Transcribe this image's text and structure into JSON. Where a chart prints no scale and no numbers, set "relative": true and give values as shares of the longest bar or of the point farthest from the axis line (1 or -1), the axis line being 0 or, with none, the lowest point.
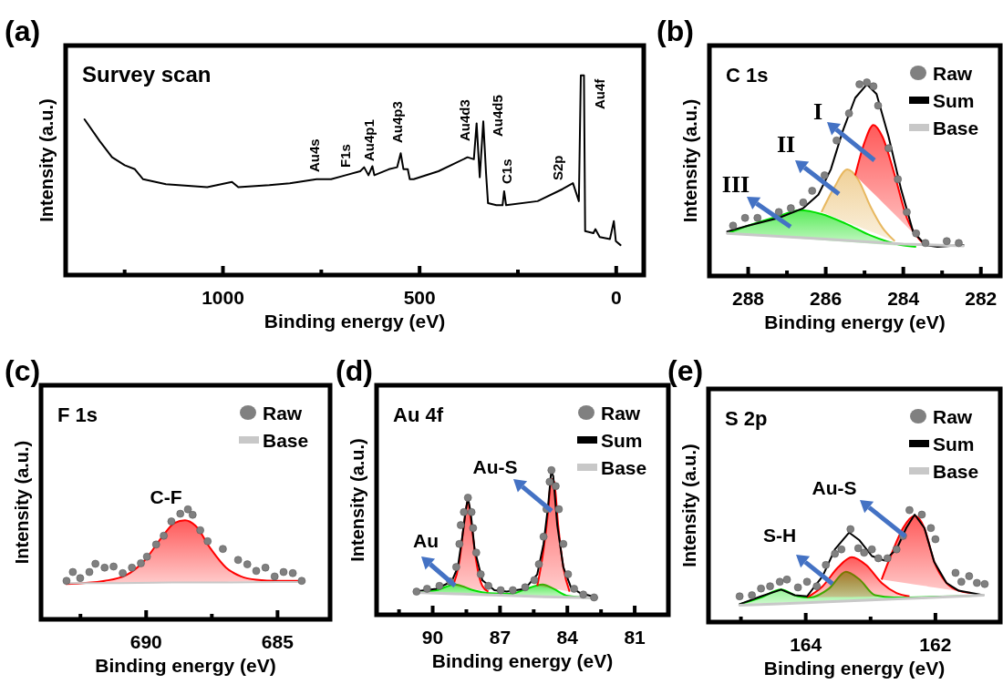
{
  "chart_data": [
    {
      "type": "line",
      "title": "Survey scan",
      "xlabel": "Binding energy (eV)",
      "ylabel": "Intensity (a.u.)",
      "relative": true,
      "xlim": [
        1400,
        -70
      ],
      "xticks": [
        {
          "value": 1250,
          "label": null
        },
        1000,
        {
          "value": 750,
          "label": null
        },
        500,
        {
          "value": 250,
          "label": null
        },
        0
      ],
      "annotations": [
        "(a)",
        "Au4s",
        "F1s",
        "Au4p1",
        "Au4p3",
        "Au4d3",
        "Au4d5",
        "C1s",
        "S2p",
        "Au4f"
      ],
      "series": [
        {
          "color": "#000000",
          "x": [
            1352,
            1313,
            1282,
            1250,
            1224,
            1203,
            1145,
            1040,
            977,
            961,
            882,
            830,
            762,
            725,
            688,
            651,
            641,
            630,
            620,
            615,
            578,
            557,
            548,
            541,
            530,
            525,
            515,
            452,
            378,
            362,
            355,
            347,
            338,
            331,
            326,
            305,
            289,
            285,
            280,
            200,
            137,
            110,
            95,
            90,
            82,
            79,
            58,
            53,
            42,
            16,
            6,
            1,
            -11
          ],
          "values": [
            0.78,
            0.67,
            0.59,
            0.55,
            0.53,
            0.48,
            0.455,
            0.44,
            0.466,
            0.44,
            0.45,
            0.46,
            0.48,
            0.48,
            0.5,
            0.52,
            0.54,
            0.5,
            0.545,
            0.5,
            0.53,
            0.54,
            0.61,
            0.53,
            0.53,
            0.48,
            0.48,
            0.52,
            0.59,
            0.58,
            0.76,
            0.49,
            0.77,
            0.51,
            0.36,
            0.35,
            0.35,
            0.42,
            0.35,
            0.37,
            0.43,
            0.46,
            0.37,
            1.0,
            1.0,
            0.22,
            0.21,
            0.23,
            0.19,
            0.18,
            0.27,
            0.17,
            0.15
          ]
        }
      ]
    },
    {
      "type": "line",
      "title": "C 1s",
      "xlabel": "Binding energy (eV)",
      "ylabel": "Intensity (a.u.)",
      "relative": true,
      "legend": "top right",
      "xlim": [
        289,
        281.5
      ],
      "xticks": [
        288,
        {
          "value": 287,
          "label": null
        },
        286,
        {
          "value": 285,
          "label": null
        },
        284,
        {
          "value": 283,
          "label": null
        },
        282
      ],
      "annotations": [
        "(b)",
        "I",
        "II",
        "III"
      ],
      "series": [
        {
          "name": "Raw",
          "type": "scatter",
          "marker": "circle",
          "color": "#808080",
          "x": [
            288.39,
            288.08,
            287.76,
            287.21,
            286.9,
            286.58,
            286.35,
            286.03,
            285.72,
            285.4,
            285.13,
            284.94,
            284.77,
            284.65,
            284.38,
            284.14,
            283.91,
            283.67,
            283.43,
            282.88,
            282.57
          ],
          "values": [
            0.26,
            0.3,
            0.3,
            0.33,
            0.35,
            0.38,
            0.44,
            0.52,
            0.7,
            0.84,
            0.99,
            1.0,
            0.98,
            0.88,
            0.66,
            0.5,
            0.33,
            0.22,
            0.17,
            0.18,
            0.17
          ]
        },
        {
          "name": "Sum",
          "color": "#000000",
          "x": [
            288.54,
            288,
            287.21,
            286.58,
            286.19,
            285.87,
            285.56,
            285.24,
            284.94,
            284.69,
            284.38,
            284.06,
            283.75,
            283.43,
            283.12,
            282.45
          ],
          "values": [
            0.23,
            0.26,
            0.3,
            0.35,
            0.42,
            0.55,
            0.75,
            0.92,
            0.99,
            0.94,
            0.72,
            0.45,
            0.23,
            0.16,
            0.15,
            0.16
          ]
        },
        {
          "name": "Base",
          "color": "#c8c8c8",
          "x": [
            288.54,
            286,
            284,
            282.45
          ],
          "values": [
            0.22,
            0.19,
            0.165,
            0.155
          ]
        },
        {
          "type": "area",
          "color": "#00e000",
          "x": [
            288.54,
            288,
            287.21,
            286.66,
            286.11,
            285.48,
            284.85,
            284.06,
            283.67
          ],
          "values": [
            0.22,
            0.26,
            0.31,
            0.34,
            0.32,
            0.27,
            0.21,
            0.16,
            0.15
          ]
        },
        {
          "type": "area",
          "color": "#e8b860",
          "x": [
            286.11,
            285.8,
            285.44,
            285.17,
            284.85,
            284.54,
            284.22
          ],
          "values": [
            0.33,
            0.45,
            0.55,
            0.5,
            0.36,
            0.25,
            0.18
          ]
        },
        {
          "type": "area",
          "color": "#ff0000",
          "x": [
            285.24,
            285.0,
            284.77,
            284.54,
            284.22,
            283.91,
            283.59,
            283.43
          ],
          "values": [
            0.52,
            0.69,
            0.78,
            0.72,
            0.52,
            0.3,
            0.19,
            0.16
          ]
        }
      ]
    },
    {
      "type": "line",
      "title": "F 1s",
      "xlabel": "Binding energy (eV)",
      "ylabel": "Intensity (a.u.)",
      "relative": true,
      "legend": "top right",
      "xlim": [
        694,
        683
      ],
      "xticks": [
        {
          "value": 692.5,
          "label": null
        },
        690,
        {
          "value": 687.5,
          "label": null
        },
        685
      ],
      "annotations": [
        "(c)",
        "C-F"
      ],
      "series": [
        {
          "name": "Raw",
          "type": "scatter",
          "marker": "circle",
          "color": "#808080",
          "x": [
            693.03,
            692.79,
            692.51,
            692.16,
            691.93,
            691.58,
            691.24,
            690.89,
            690.54,
            690.2,
            689.97,
            689.62,
            689.33,
            689.04,
            688.7,
            688.41,
            688.23,
            687.94,
            687.66,
            687.08,
            686.5,
            686.15,
            685.81,
            685.46,
            685.11,
            684.77,
            684.42,
            684.08
          ],
          "values": [
            0.35,
            0.43,
            0.375,
            0.43,
            0.505,
            0.47,
            0.48,
            0.42,
            0.47,
            0.51,
            0.57,
            0.68,
            0.76,
            0.89,
            0.96,
            1.0,
            0.95,
            0.81,
            0.71,
            0.64,
            0.54,
            0.5,
            0.44,
            0.47,
            0.39,
            0.43,
            0.42,
            0.35
          ]
        },
        {
          "name": "Base",
          "color": "#c8c8c8",
          "x": [
            693.06,
            691,
            689,
            687,
            685,
            683.96
          ],
          "values": [
            0.33,
            0.33,
            0.335,
            0.335,
            0.34,
            0.34
          ]
        },
        {
          "type": "area",
          "color": "#ff0000",
          "x": [
            693.06,
            691.58,
            690.77,
            690.08,
            689.39,
            688.93,
            688.52,
            688.12,
            687.54,
            686.96,
            686.39,
            685.81,
            685.0,
            683.96
          ],
          "values": [
            0.32,
            0.35,
            0.4,
            0.53,
            0.75,
            0.875,
            0.9,
            0.85,
            0.64,
            0.47,
            0.39,
            0.36,
            0.35,
            0.35
          ]
        }
      ]
    },
    {
      "type": "line",
      "title": "Au 4f",
      "xlabel": "Binding energy (eV)",
      "ylabel": "Intensity (a.u.)",
      "relative": true,
      "legend": "top right",
      "xlim": [
        92.5,
        79.5
      ],
      "xticks": [
        {
          "value": 91.5,
          "label": null
        },
        90,
        {
          "value": 88.5,
          "label": null
        },
        87,
        {
          "value": 85.5,
          "label": null
        },
        84,
        {
          "value": 82.5,
          "label": null
        },
        81
      ],
      "annotations": [
        "(d)",
        "Au-S",
        "Au"
      ],
      "series": [
        {
          "name": "Raw",
          "type": "scatter",
          "marker": "circle",
          "color": "#808080",
          "x": [
            90.72,
            90.25,
            89.7,
            89.22,
            88.95,
            88.81,
            88.75,
            88.61,
            88.43,
            88.27,
            88.2,
            88.06,
            87.86,
            87.52,
            86.97,
            86.43,
            85.88,
            85.47,
            85.27,
            85.06,
            84.93,
            84.79,
            84.71,
            84.52,
            84.38,
            84.18,
            83.97,
            83.7,
            83.29,
            82.81
          ],
          "values": [
            0.16,
            0.18,
            0.2,
            0.23,
            0.33,
            0.49,
            0.62,
            0.71,
            0.81,
            0.71,
            0.6,
            0.43,
            0.28,
            0.2,
            0.17,
            0.17,
            0.19,
            0.24,
            0.35,
            0.54,
            0.73,
            0.92,
            1.0,
            0.89,
            0.73,
            0.49,
            0.28,
            0.18,
            0.14,
            0.12
          ]
        },
        {
          "name": "Sum",
          "color": "#000000",
          "x": [
            90.82,
            89.84,
            89.15,
            88.88,
            88.68,
            88.54,
            88.43,
            88.31,
            88.13,
            87.79,
            87.25,
            86.7,
            85.88,
            85.34,
            85.06,
            84.86,
            84.72,
            84.63,
            84.45,
            84.18,
            83.84,
            83.43,
            82.68
          ],
          "values": [
            0.16,
            0.18,
            0.23,
            0.33,
            0.54,
            0.71,
            0.81,
            0.71,
            0.45,
            0.24,
            0.17,
            0.16,
            0.18,
            0.28,
            0.49,
            0.75,
            0.99,
            0.96,
            0.62,
            0.33,
            0.19,
            0.15,
            0.12
          ]
        },
        {
          "name": "Base",
          "color": "#c8c8c8",
          "x": [
            90.82,
            89,
            87,
            85,
            83.5,
            82.68
          ],
          "values": [
            0.155,
            0.145,
            0.135,
            0.125,
            0.12,
            0.115
          ]
        },
        {
          "type": "area",
          "color": "#00e000",
          "x": [
            90.82,
            89.84,
            89.0,
            88.2,
            87.5,
            86.5,
            85.98,
            85.1,
            84.62,
            83.97,
            82.68
          ],
          "values": [
            0.155,
            0.17,
            0.21,
            0.17,
            0.15,
            0.145,
            0.17,
            0.21,
            0.18,
            0.13,
            0.115
          ]
        },
        {
          "type": "area",
          "color": "#ff0000",
          "x": [
            89.09,
            88.81,
            88.61,
            88.43,
            88.27,
            88.06,
            87.79,
            87.52
          ],
          "values": [
            0.2,
            0.37,
            0.62,
            0.79,
            0.62,
            0.37,
            0.2,
            0.16
          ]
        },
        {
          "type": "area",
          "color": "#ff0000",
          "x": [
            85.34,
            85.06,
            84.86,
            84.72,
            84.59,
            84.41,
            84.18,
            83.9
          ],
          "values": [
            0.2,
            0.45,
            0.71,
            0.94,
            0.92,
            0.62,
            0.33,
            0.16
          ]
        }
      ]
    },
    {
      "type": "line",
      "title": "S 2p",
      "xlabel": "Binding energy (eV)",
      "ylabel": "Intensity (a.u.)",
      "relative": true,
      "legend": "top right",
      "xlim": [
        165.5,
        161
      ],
      "xticks": [
        {
          "value": 165,
          "label": null
        },
        164,
        {
          "value": 163,
          "label": null
        },
        162
      ],
      "annotations": [
        "(e)",
        "Au-S",
        "S-H"
      ],
      "series": [
        {
          "name": "Raw",
          "type": "scatter",
          "marker": "circle",
          "color": "#808080",
          "x": [
            165.02,
            164.83,
            164.69,
            164.55,
            164.4,
            164.29,
            164.12,
            163.98,
            163.83,
            163.69,
            163.55,
            163.45,
            163.31,
            163.19,
            163.1,
            162.98,
            162.88,
            162.74,
            162.6,
            162.5,
            162.4,
            162.21,
            162.07,
            162.0,
            161.69,
            161.6,
            161.48,
            161.36,
            161.24
          ],
          "values": [
            0.23,
            0.24,
            0.3,
            0.32,
            0.36,
            0.38,
            0.31,
            0.36,
            0.32,
            0.51,
            0.61,
            0.65,
            0.83,
            0.66,
            0.62,
            0.65,
            0.57,
            0.57,
            0.65,
            0.77,
            1.0,
            0.96,
            0.84,
            0.74,
            0.44,
            0.36,
            0.41,
            0.35,
            0.34
          ]
        },
        {
          "name": "Sum",
          "color": "#000000",
          "x": [
            165.02,
            164.69,
            164.38,
            164.17,
            163.98,
            163.74,
            163.55,
            163.33,
            163.17,
            162.98,
            162.79,
            162.6,
            162.45,
            162.32,
            162.17,
            162.02,
            161.83,
            161.64,
            161.45,
            161.26
          ],
          "values": [
            0.16,
            0.23,
            0.29,
            0.24,
            0.23,
            0.41,
            0.65,
            0.8,
            0.73,
            0.59,
            0.55,
            0.65,
            0.84,
            0.96,
            0.84,
            0.54,
            0.35,
            0.28,
            0.26,
            0.24
          ]
        },
        {
          "name": "Base",
          "color": "#c8c8c8",
          "x": [
            165.02,
            164.5,
            163.5,
            162.5,
            161.8,
            161.26
          ],
          "values": [
            0.15,
            0.16,
            0.185,
            0.21,
            0.225,
            0.24
          ]
        },
        {
          "type": "area",
          "color": "#00e000",
          "x": [
            165.02,
            164.69,
            164.38,
            164.12,
            163.93,
            163.64,
            163.38,
            163.17,
            162.93,
            162.64,
            161.26
          ],
          "values": [
            0.16,
            0.22,
            0.29,
            0.23,
            0.22,
            0.3,
            0.45,
            0.38,
            0.24,
            0.22,
            0.24
          ]
        },
        {
          "type": "area",
          "color": "#ff0000",
          "x": [
            163.98,
            163.74,
            163.5,
            163.29,
            163.07,
            162.83,
            162.6,
            162.4
          ],
          "values": [
            0.22,
            0.32,
            0.49,
            0.58,
            0.51,
            0.35,
            0.26,
            0.23
          ]
        },
        {
          "type": "area",
          "color": "#ff0000",
          "x": [
            162.83,
            162.69,
            162.5,
            162.32,
            162.17,
            162.02,
            161.83,
            161.64,
            161.45
          ],
          "values": [
            0.38,
            0.59,
            0.84,
            0.95,
            0.84,
            0.54,
            0.35,
            0.28,
            0.26
          ]
        }
      ]
    }
  ]
}
